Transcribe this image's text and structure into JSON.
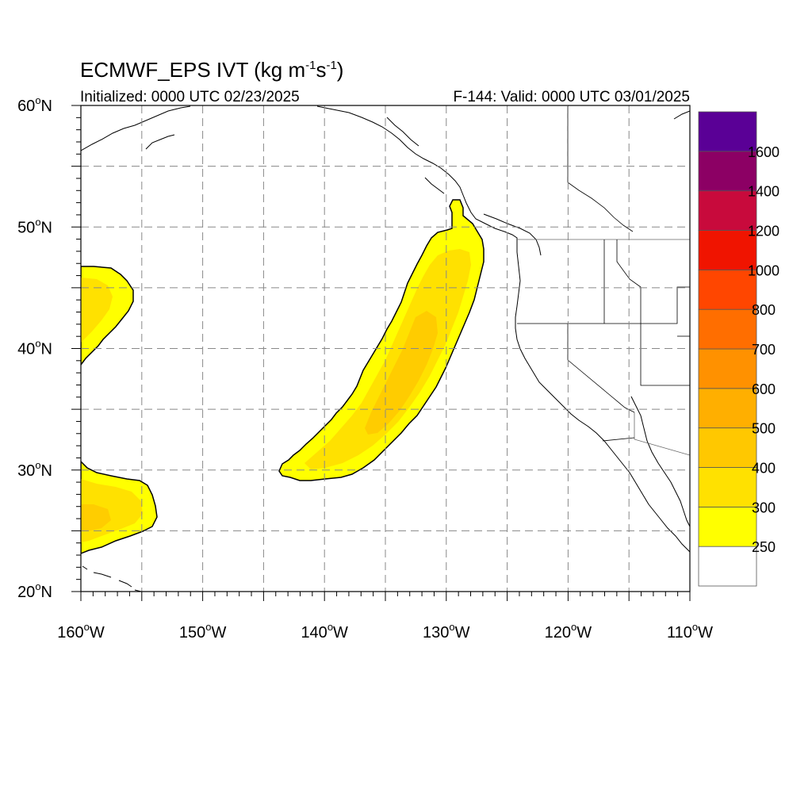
{
  "title": {
    "main": "ECMWF_EPS IVT (kg m",
    "exp1": "-1",
    "mid": "s",
    "exp2": "-1",
    "close": ")"
  },
  "subtitle": {
    "initialized": "Initialized: 0000 UTC 02/23/2025",
    "valid": "F-144: Valid: 0000 UTC 03/01/2025"
  },
  "map": {
    "lat_range": [
      20,
      60
    ],
    "lon_range": [
      -160,
      -110
    ],
    "lat_labels": [
      {
        "lat": 60,
        "text": "60",
        "hemi": "N"
      },
      {
        "lat": 50,
        "text": "50",
        "hemi": "N"
      },
      {
        "lat": 40,
        "text": "40",
        "hemi": "N"
      },
      {
        "lat": 30,
        "text": "30",
        "hemi": "N"
      },
      {
        "lat": 20,
        "text": "20",
        "hemi": "N"
      }
    ],
    "lon_labels": [
      {
        "lon": -160,
        "text": "160",
        "hemi": "W"
      },
      {
        "lon": -150,
        "text": "150",
        "hemi": "W"
      },
      {
        "lon": -140,
        "text": "140",
        "hemi": "W"
      },
      {
        "lon": -130,
        "text": "130",
        "hemi": "W"
      },
      {
        "lon": -120,
        "text": "120",
        "hemi": "W"
      },
      {
        "lon": -110,
        "text": "110",
        "hemi": "W"
      }
    ],
    "degree_symbol": "o"
  },
  "colorbar": {
    "labels": [
      "250",
      "300",
      "400",
      "500",
      "600",
      "700",
      "800",
      "1000",
      "1200",
      "1400",
      "1600"
    ],
    "colors": [
      "#ffffff",
      "#ffff00",
      "#ffe100",
      "#ffc800",
      "#ffaf00",
      "#ff9100",
      "#ff6e00",
      "#ff4600",
      "#f01400",
      "#c80a3c",
      "#8c0064",
      "#5a0096"
    ]
  },
  "ivt_colors": {
    "c250": "#ffff00",
    "c300": "#ffe100",
    "c400": "#ffc800"
  }
}
